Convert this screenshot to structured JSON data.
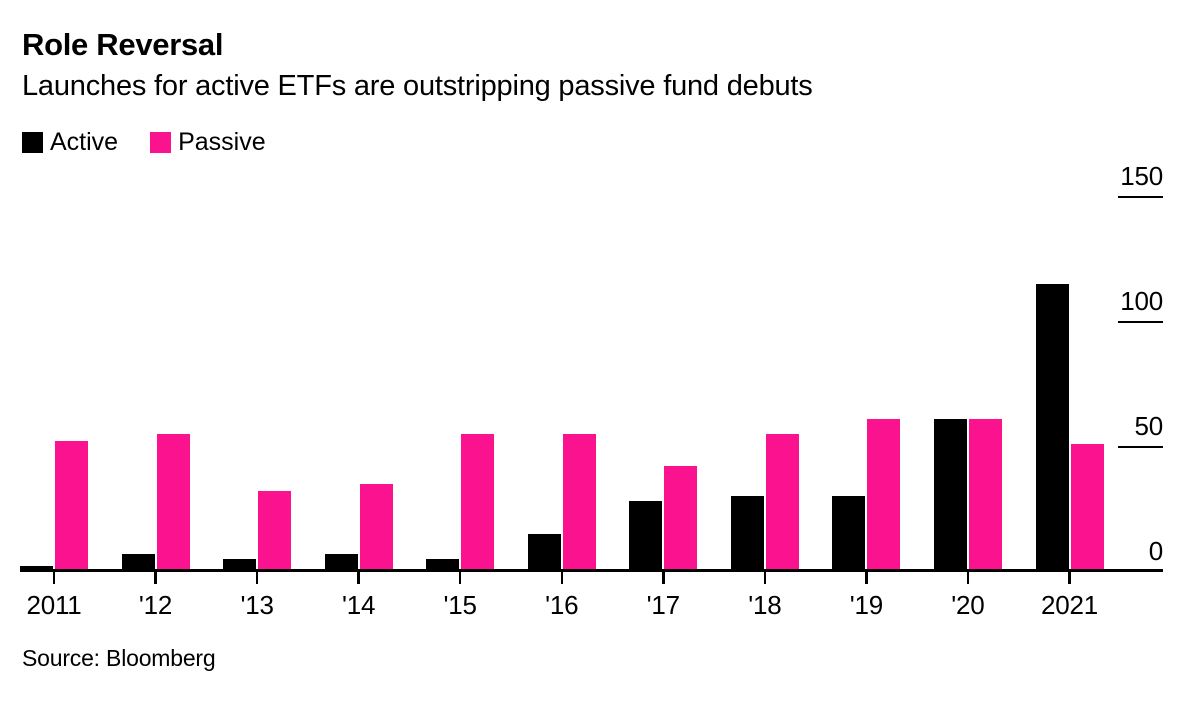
{
  "header": {
    "title": "Role Reversal",
    "subtitle": "Launches for active ETFs are outstripping passive fund debuts"
  },
  "footer": {
    "source": "Source: Bloomberg"
  },
  "colors": {
    "active": "#000000",
    "passive": "#fa128f",
    "axis": "#000000",
    "background": "#ffffff"
  },
  "chart_data": {
    "type": "bar",
    "title": "Role Reversal",
    "subtitle": "Launches for active ETFs are outstripping passive fund debuts",
    "categories": [
      "2011",
      "'12",
      "'13",
      "'14",
      "'15",
      "'16",
      "'17",
      "'18",
      "'19",
      "'20",
      "2021"
    ],
    "series": [
      {
        "name": "Active",
        "color": "#000000",
        "values": [
          2,
          7,
          5,
          7,
          5,
          15,
          28,
          30,
          30,
          61,
          115
        ]
      },
      {
        "name": "Passive",
        "color": "#fa128f",
        "values": [
          52,
          55,
          32,
          35,
          55,
          55,
          42,
          55,
          61,
          61,
          51
        ]
      }
    ],
    "xlabel": "",
    "ylabel": "",
    "ylim": [
      0,
      150
    ],
    "yticks": [
      0,
      50,
      100,
      150
    ],
    "legend_position": "top-left",
    "grid": false,
    "source": "Source: Bloomberg"
  }
}
